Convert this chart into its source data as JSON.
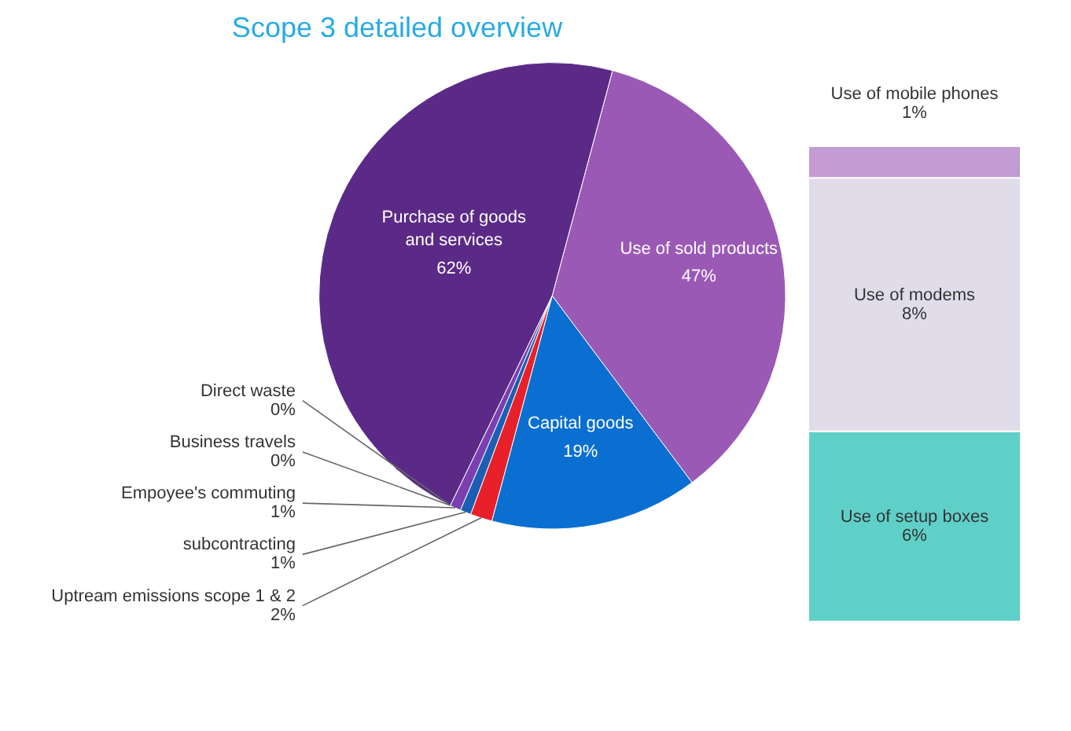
{
  "chart_data": [
    {
      "type": "pie",
      "title": "Scope 3 detailed overview",
      "categories": [
        "Purchase of goods and services",
        "Direct waste",
        "Business travels",
        "Empoyee's commuting",
        "subcontracting",
        "Uptream emissions scope 1 & 2",
        "Capital goods",
        "Use of sold products"
      ],
      "values": [
        62,
        0,
        0,
        1,
        1,
        2,
        19,
        47
      ],
      "value_labels": [
        "62%",
        "0%",
        "0%",
        "1%",
        "1%",
        "2%",
        "19%",
        "47%"
      ],
      "colors": [
        "#5b2a86",
        "#6b8e4e",
        "#4a9a8a",
        "#7b3fb0",
        "#1a5fb4",
        "#e8202a",
        "#0a6fd0",
        "#9b59b6"
      ]
    },
    {
      "type": "bar",
      "stacked": true,
      "categories": [
        null
      ],
      "data_labels": true,
      "series": [
        {
          "name": "Use of setup boxes",
          "color": "#5fd0c8",
          "values": [
            6
          ],
          "value_labels": [
            "6%"
          ]
        },
        {
          "name": "Use of modems",
          "color": "#e0dcea",
          "values": [
            8
          ],
          "value_labels": [
            "8%"
          ]
        },
        {
          "name": "Use of mobile phones",
          "color": "#c39bd3",
          "values": [
            1
          ],
          "value_labels": [
            "1%"
          ]
        }
      ]
    }
  ]
}
